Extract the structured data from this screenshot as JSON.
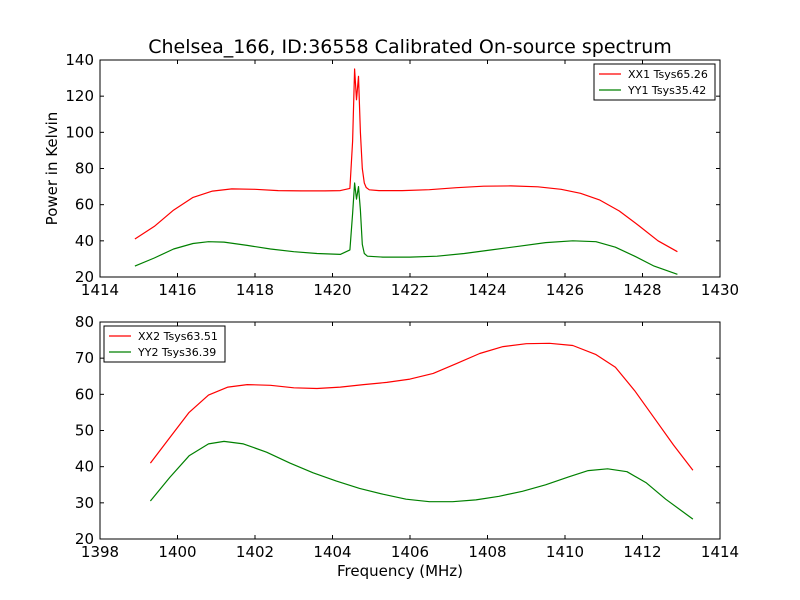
{
  "title": "Chelsea_166, ID:36558 Calibrated On-source spectrum",
  "chart_data": [
    {
      "type": "line",
      "ylabel": "Power in Kelvin",
      "xlabel": "",
      "xlim": [
        1414,
        1430
      ],
      "ylim": [
        20,
        140
      ],
      "xticks": [
        "1414",
        "1416",
        "1418",
        "1420",
        "1422",
        "1424",
        "1426",
        "1428",
        "1430"
      ],
      "yticks": [
        "20",
        "40",
        "60",
        "80",
        "100",
        "120",
        "140"
      ],
      "legend_position": "top-right",
      "series": [
        {
          "name": "XX1 Tsys65.26",
          "color": "#ff0000",
          "x": [
            1414.9,
            1415.4,
            1415.9,
            1416.4,
            1416.9,
            1417.4,
            1418.0,
            1418.6,
            1419.2,
            1419.8,
            1420.2,
            1420.45,
            1420.52,
            1420.57,
            1420.62,
            1420.67,
            1420.72,
            1420.77,
            1420.82,
            1420.87,
            1420.95,
            1421.2,
            1421.8,
            1422.5,
            1423.2,
            1423.9,
            1424.6,
            1425.3,
            1425.9,
            1426.4,
            1426.9,
            1427.4,
            1427.9,
            1428.4,
            1428.9
          ],
          "y": [
            41,
            48,
            57,
            64,
            67.5,
            68.7,
            68.5,
            67.8,
            67.6,
            67.6,
            67.8,
            69,
            95,
            135,
            118,
            131,
            100,
            80,
            72,
            69.5,
            68.2,
            67.8,
            67.8,
            68.3,
            69.4,
            70.2,
            70.4,
            69.9,
            68.5,
            66.3,
            62.5,
            56.5,
            48.5,
            40,
            34
          ]
        },
        {
          "name": "YY1 Tsys35.42",
          "color": "#008000",
          "x": [
            1414.9,
            1415.4,
            1415.9,
            1416.4,
            1416.8,
            1417.2,
            1417.8,
            1418.4,
            1419.0,
            1419.6,
            1420.2,
            1420.45,
            1420.52,
            1420.57,
            1420.62,
            1420.67,
            1420.72,
            1420.77,
            1420.82,
            1420.9,
            1421.3,
            1422.0,
            1422.7,
            1423.4,
            1424.1,
            1424.8,
            1425.5,
            1426.2,
            1426.8,
            1427.3,
            1427.8,
            1428.3,
            1428.9
          ],
          "y": [
            26,
            30.5,
            35.5,
            38.5,
            39.5,
            39.3,
            37.5,
            35.5,
            34,
            33,
            32.5,
            35,
            55,
            72,
            63,
            70,
            57,
            38,
            33,
            31.5,
            31,
            31,
            31.5,
            33,
            35,
            37,
            39,
            40,
            39.5,
            36.5,
            31.5,
            26,
            21.5
          ]
        }
      ]
    },
    {
      "type": "line",
      "ylabel": "",
      "xlabel": "Frequency (MHz)",
      "xlim": [
        1398,
        1414
      ],
      "ylim": [
        20,
        80
      ],
      "xticks": [
        "1398",
        "1400",
        "1402",
        "1404",
        "1406",
        "1408",
        "1410",
        "1412",
        "1414"
      ],
      "yticks": [
        "20",
        "30",
        "40",
        "50",
        "60",
        "70",
        "80"
      ],
      "legend_position": "top-left",
      "series": [
        {
          "name": "XX2 Tsys63.51",
          "color": "#ff0000",
          "x": [
            1399.3,
            1399.8,
            1400.3,
            1400.8,
            1401.3,
            1401.8,
            1402.4,
            1403.0,
            1403.6,
            1404.2,
            1404.8,
            1405.4,
            1406.0,
            1406.6,
            1407.2,
            1407.8,
            1408.4,
            1409.0,
            1409.6,
            1410.2,
            1410.8,
            1411.3,
            1411.8,
            1412.3,
            1412.8,
            1413.3
          ],
          "y": [
            41,
            48,
            55,
            59.8,
            62,
            62.7,
            62.5,
            61.8,
            61.6,
            62,
            62.7,
            63.3,
            64.2,
            65.8,
            68.5,
            71.3,
            73.2,
            74,
            74.1,
            73.5,
            71,
            67.5,
            61,
            53.5,
            46,
            39
          ]
        },
        {
          "name": "YY2 Tsys36.39",
          "color": "#008000",
          "x": [
            1399.3,
            1399.8,
            1400.3,
            1400.8,
            1401.2,
            1401.7,
            1402.3,
            1402.9,
            1403.5,
            1404.1,
            1404.7,
            1405.3,
            1405.9,
            1406.5,
            1407.1,
            1407.7,
            1408.3,
            1408.9,
            1409.5,
            1410.1,
            1410.6,
            1411.1,
            1411.6,
            1412.1,
            1412.6,
            1413.3
          ],
          "y": [
            30.5,
            37,
            43,
            46.3,
            47,
            46.3,
            44,
            41,
            38.3,
            36,
            34,
            32.4,
            31,
            30.3,
            30.3,
            30.8,
            31.8,
            33.2,
            35,
            37.2,
            38.9,
            39.4,
            38.6,
            35.5,
            31,
            25.5
          ]
        }
      ]
    }
  ]
}
